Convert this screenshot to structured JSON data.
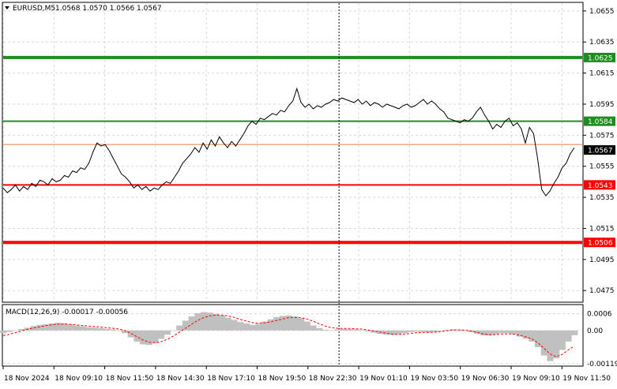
{
  "chart_data": [
    {
      "type": "line",
      "title": "EURUSD,M5",
      "ohlc_header": "1.0568 1.0570 1.0566 1.0567",
      "x_tick_labels": [
        "18 Nov 2024",
        "18 Nov 09:10",
        "18 Nov 11:50",
        "18 Nov 14:30",
        "18 Nov 17:10",
        "18 Nov 19:50",
        "18 Nov 22:30",
        "19 Nov 01:10",
        "19 Nov 03:50",
        "19 Nov 06:30",
        "19 Nov 09:10",
        "19 Nov 11:50"
      ],
      "y_tick_labels": [
        "1.0655",
        "1.0635",
        "1.0615",
        "1.0595",
        "1.0575",
        "1.0555",
        "1.0535",
        "1.0515",
        "1.0495",
        "1.0475"
      ],
      "ylim": [
        1.0468,
        1.066
      ],
      "grid": true,
      "series": [
        {
          "values": [
            1.0541,
            1.0538,
            1.054,
            1.0543,
            1.0539,
            1.0542,
            1.054,
            1.0544,
            1.0542,
            1.0546,
            1.0545,
            1.0543,
            1.0547,
            1.0545,
            1.0546,
            1.0549,
            1.0548,
            1.0552,
            1.0551,
            1.0554,
            1.0553,
            1.0557,
            1.0564,
            1.057,
            1.0568,
            1.0569,
            1.0565,
            1.056,
            1.0555,
            1.055,
            1.0548,
            1.0545,
            1.0541,
            1.0543,
            1.054,
            1.0542,
            1.0539,
            1.0541,
            1.054,
            1.0543,
            1.0545,
            1.0544,
            1.0548,
            1.0552,
            1.0557,
            1.056,
            1.0563,
            1.0567,
            1.0564,
            1.057,
            1.0566,
            1.0572,
            1.0568,
            1.0574,
            1.057,
            1.0567,
            1.0571,
            1.0568,
            1.0572,
            1.0576,
            1.0581,
            1.0584,
            1.0582,
            1.0586,
            1.0585,
            1.0587,
            1.0589,
            1.0588,
            1.0591,
            1.059,
            1.0594,
            1.0597,
            1.0605,
            1.0596,
            1.0593,
            1.0595,
            1.0592,
            1.0594,
            1.0593,
            1.0595,
            1.0596,
            1.0598,
            1.0597,
            1.0599,
            1.0598,
            1.0597,
            1.0596,
            1.0598,
            1.0595,
            1.0597,
            1.0594,
            1.0596,
            1.0595,
            1.0593,
            1.0595,
            1.0594,
            1.0593,
            1.0592,
            1.0594,
            1.0595,
            1.0593,
            1.0594,
            1.0596,
            1.0598,
            1.0595,
            1.0597,
            1.0595,
            1.0592,
            1.059,
            1.0586,
            1.0585,
            1.0584,
            1.0583,
            1.0585,
            1.0584,
            1.0586,
            1.059,
            1.0593,
            1.0588,
            1.0584,
            1.0579,
            1.0582,
            1.058,
            1.0584,
            1.0586,
            1.0581,
            1.0583,
            1.0579,
            1.057,
            1.058,
            1.0576,
            1.056,
            1.054,
            1.0536,
            1.0539,
            1.0544,
            1.0548,
            1.0554,
            1.0557,
            1.0563,
            1.0567
          ]
        }
      ],
      "horizontal_lines": [
        {
          "value": 1.0625,
          "label": "1.0625",
          "color": "#1e8c1e",
          "weight": "thick"
        },
        {
          "value": 1.0584,
          "label": "1.0584",
          "color": "#1e8c1e",
          "weight": "medium"
        },
        {
          "value": 1.0569,
          "label": "",
          "color": "#e08040",
          "weight": "thin"
        },
        {
          "value": 1.0543,
          "label": "1.0543",
          "color": "#ff0000",
          "weight": "medium"
        },
        {
          "value": 1.0506,
          "label": "1.0506",
          "color": "#ff0000",
          "weight": "thick"
        }
      ],
      "current_price_label": "1.0567",
      "crosshair_x_fraction": 0.58
    },
    {
      "type": "bar",
      "title": "MACD(12,26,9) -0.00017 -0.00056",
      "y_tick_labels": [
        "0.0006",
        "0.00",
        "-0.00119"
      ],
      "ylim": [
        -0.00125,
        0.0009
      ],
      "macd_values": [
        -0.0001,
        -5e-05,
        0.0,
        5e-05,
        0.0001,
        0.00016,
        0.0002,
        0.00022,
        0.00025,
        0.00028,
        0.00026,
        0.00022,
        0.00018,
        0.00015,
        0.00012,
        0.0001,
        8e-05,
        6e-05,
        4e-05,
        0.0,
        -0.0001,
        -0.00025,
        -0.0004,
        -0.0005,
        -0.00052,
        -0.00045,
        -0.0003,
        -0.00015,
        0.0,
        0.00018,
        0.00035,
        0.0005,
        0.00062,
        0.00066,
        0.00064,
        0.0006,
        0.00054,
        0.00046,
        0.00038,
        0.0003,
        0.00025,
        0.0002,
        0.00024,
        0.00032,
        0.0004,
        0.00048,
        0.00052,
        0.00054,
        0.0005,
        0.00044,
        0.00032,
        0.00018,
        8e-05,
        3e-05,
        0.0,
        4e-05,
        6e-05,
        5e-05,
        4e-05,
        2e-05,
        -3e-05,
        -8e-05,
        -0.00012,
        -0.00015,
        -0.00016,
        -0.00014,
        -0.0001,
        -6e-05,
        -4e-05,
        -5e-05,
        -8e-05,
        -6e-05,
        -2e-05,
        2e-05,
        4e-05,
        3e-05,
        0.0,
        -6e-05,
        -0.00012,
        -0.00018,
        -0.00018,
        -0.00014,
        -0.0001,
        -0.0001,
        -0.00014,
        -0.00022,
        -0.0003,
        -0.0004,
        -0.0006,
        -0.0009,
        -0.0011,
        -0.001,
        -0.0007,
        -0.0004,
        -0.00017
      ],
      "signal_values": [
        -0.00018,
        -0.00014,
        -8e-05,
        -2e-05,
        4e-05,
        9e-05,
        0.00013,
        0.00017,
        0.0002,
        0.00022,
        0.00023,
        0.00022,
        0.0002,
        0.00018,
        0.00016,
        0.00014,
        0.00012,
        0.0001,
        8e-05,
        5e-05,
        0.0,
        -0.0001,
        -0.00022,
        -0.00034,
        -0.00042,
        -0.00044,
        -0.0004,
        -0.00032,
        -0.0002,
        -6e-05,
        8e-05,
        0.00022,
        0.00036,
        0.00046,
        0.00052,
        0.00055,
        0.00055,
        0.00052,
        0.00047,
        0.0004,
        0.00034,
        0.00028,
        0.00026,
        0.00027,
        0.00031,
        0.00036,
        0.00041,
        0.00046,
        0.00047,
        0.00046,
        0.00041,
        0.00033,
        0.00024,
        0.00016,
        0.0001,
        8e-05,
        7e-05,
        7e-05,
        6e-05,
        5e-05,
        2e-05,
        -2e-05,
        -6e-05,
        -0.0001,
        -0.00013,
        -0.00014,
        -0.00013,
        -0.00011,
        -8e-05,
        -7e-05,
        -7e-05,
        -6e-05,
        -4e-05,
        -1e-05,
        2e-05,
        2e-05,
        1e-05,
        -2e-05,
        -7e-05,
        -0.00012,
        -0.00015,
        -0.00015,
        -0.00013,
        -0.00012,
        -0.00013,
        -0.00017,
        -0.00023,
        -0.0003,
        -0.00044,
        -0.00064,
        -0.00084,
        -0.00094,
        -0.00086,
        -0.0007,
        -0.00056
      ],
      "macd_color": "#c0c0c0",
      "signal_color": "#ff0000"
    }
  ]
}
